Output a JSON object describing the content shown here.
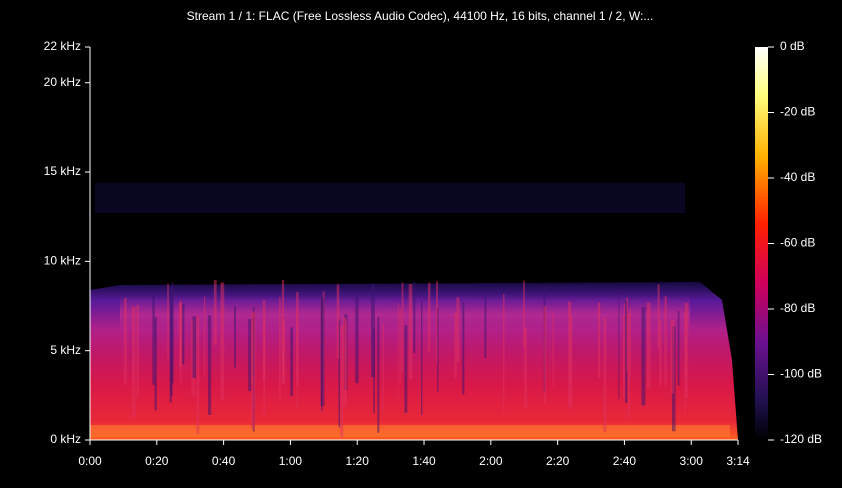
{
  "chart_data": {
    "type": "spectrogram",
    "title": "Stream 1 / 1: FLAC (Free Lossless Audio Codec), 44100 Hz, 16 bits, channel 1 / 2, W:...",
    "xlim": [
      0,
      194
    ],
    "xticks": [
      {
        "value": 0,
        "label": "0:00"
      },
      {
        "value": 20,
        "label": "0:20"
      },
      {
        "value": 40,
        "label": "0:40"
      },
      {
        "value": 60,
        "label": "1:00"
      },
      {
        "value": 80,
        "label": "1:20"
      },
      {
        "value": 100,
        "label": "1:40"
      },
      {
        "value": 120,
        "label": "2:00"
      },
      {
        "value": 140,
        "label": "2:20"
      },
      {
        "value": 160,
        "label": "2:40"
      },
      {
        "value": 180,
        "label": "3:00"
      },
      {
        "value": 194,
        "label": "3:14"
      }
    ],
    "ylim": [
      0,
      22
    ],
    "yticks": [
      {
        "value": 0,
        "label": "0 kHz"
      },
      {
        "value": 5,
        "label": "5 kHz"
      },
      {
        "value": 10,
        "label": "10 kHz"
      },
      {
        "value": 15,
        "label": "15 kHz"
      },
      {
        "value": 20,
        "label": "20 kHz"
      },
      {
        "value": 22,
        "label": "22 kHz"
      }
    ],
    "zlim": [
      -120,
      0
    ],
    "zticks": [
      {
        "value": 0,
        "label": "0 dB"
      },
      {
        "value": -20,
        "label": "-20 dB"
      },
      {
        "value": -40,
        "label": "-40 dB"
      },
      {
        "value": -60,
        "label": "-60 dB"
      },
      {
        "value": -80,
        "label": "-80 dB"
      },
      {
        "value": -100,
        "label": "-100 dB"
      },
      {
        "value": -120,
        "label": "-120 dB"
      }
    ]
  }
}
